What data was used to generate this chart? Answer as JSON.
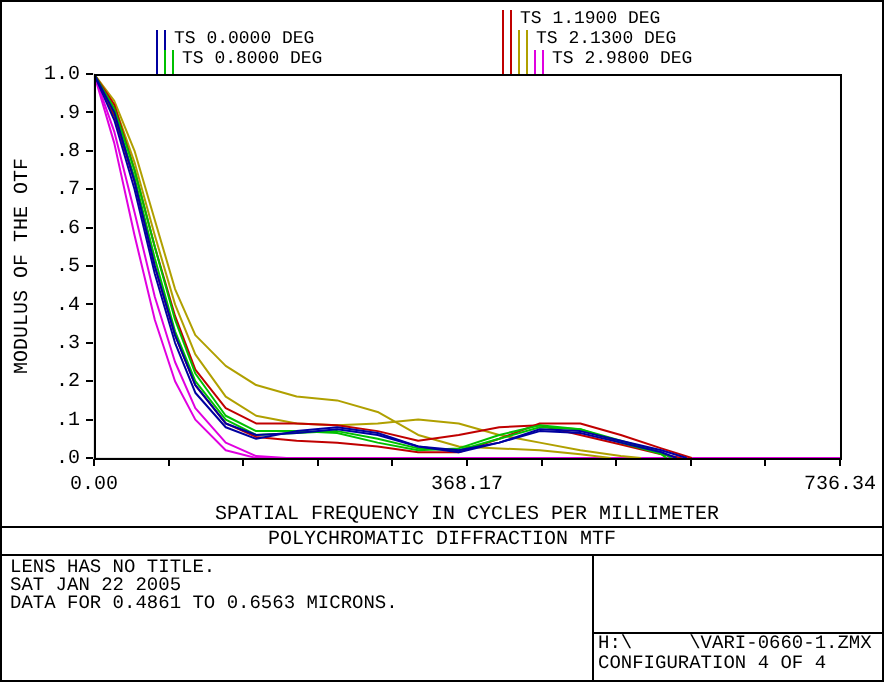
{
  "chart_data": {
    "type": "line",
    "title": "POLYCHROMATIC DIFFRACTION MTF",
    "xlabel": "SPATIAL FREQUENCY IN CYCLES PER MILLIMETER",
    "ylabel": "MODULUS OF THE OTF",
    "xlim": [
      0,
      736.34
    ],
    "xticks": [
      {
        "value": 0,
        "label": "0.00"
      },
      {
        "value": 73.634,
        "label": null
      },
      {
        "value": 147.268,
        "label": null
      },
      {
        "value": 220.902,
        "label": null
      },
      {
        "value": 294.536,
        "label": null
      },
      {
        "value": 368.17,
        "label": "368.17"
      },
      {
        "value": 441.804,
        "label": null
      },
      {
        "value": 515.438,
        "label": null
      },
      {
        "value": 589.072,
        "label": null
      },
      {
        "value": 662.706,
        "label": null
      },
      {
        "value": 736.34,
        "label": "736.34"
      }
    ],
    "ylim": [
      0,
      1
    ],
    "yticks": [
      {
        "value": 0,
        "label": ".0"
      },
      {
        "value": 0.1,
        "label": ".1"
      },
      {
        "value": 0.2,
        "label": ".2"
      },
      {
        "value": 0.3,
        "label": ".3"
      },
      {
        "value": 0.4,
        "label": ".4"
      },
      {
        "value": 0.5,
        "label": ".5"
      },
      {
        "value": 0.6,
        "label": ".6"
      },
      {
        "value": 0.7,
        "label": ".7"
      },
      {
        "value": 0.8,
        "label": ".8"
      },
      {
        "value": 0.9,
        "label": ".9"
      },
      {
        "value": 1,
        "label": "1.0"
      }
    ],
    "legend": "top",
    "marker": "none",
    "series": [
      {
        "name": "TS 0.0000 DEG",
        "color": "#0000a0",
        "x": [
          0,
          20,
          40,
          60,
          80,
          100,
          130,
          160,
          200,
          240,
          280,
          320,
          360,
          400,
          440,
          480,
          520,
          560,
          575
        ],
        "values": [
          1,
          0.88,
          0.7,
          0.48,
          0.3,
          0.17,
          0.08,
          0.05,
          0.07,
          0.08,
          0.065,
          0.03,
          0.015,
          0.04,
          0.07,
          0.065,
          0.04,
          0.015,
          0
        ]
      },
      {
        "color": "#0000a0",
        "x": [
          0,
          20,
          40,
          60,
          80,
          100,
          130,
          160,
          200,
          240,
          280,
          320,
          360,
          400,
          440,
          480,
          520,
          560,
          585
        ],
        "values": [
          1,
          0.9,
          0.72,
          0.5,
          0.32,
          0.19,
          0.09,
          0.06,
          0.065,
          0.075,
          0.06,
          0.03,
          0.02,
          0.04,
          0.075,
          0.07,
          0.045,
          0.02,
          0
        ]
      },
      {
        "name": "TS 0.8000 DEG",
        "color": "#00c000",
        "x": [
          0,
          20,
          40,
          60,
          80,
          100,
          130,
          160,
          200,
          240,
          280,
          320,
          360,
          400,
          440,
          480,
          520,
          560,
          570
        ],
        "values": [
          1,
          0.9,
          0.73,
          0.52,
          0.33,
          0.2,
          0.1,
          0.06,
          0.065,
          0.07,
          0.05,
          0.025,
          0.02,
          0.05,
          0.08,
          0.075,
          0.045,
          0.015,
          0
        ]
      },
      {
        "color": "#00c000",
        "x": [
          0,
          20,
          40,
          60,
          80,
          100,
          130,
          160,
          200,
          240,
          280,
          320,
          360,
          400,
          440,
          480,
          520,
          560,
          565
        ],
        "values": [
          1,
          0.91,
          0.75,
          0.55,
          0.36,
          0.22,
          0.11,
          0.07,
          0.07,
          0.065,
          0.04,
          0.02,
          0.025,
          0.06,
          0.085,
          0.075,
          0.04,
          0.01,
          0
        ]
      },
      {
        "name": "TS 1.1900 DEG",
        "color": "#c00000",
        "x": [
          0,
          20,
          40,
          60,
          80,
          100,
          130,
          160,
          200,
          240,
          280,
          320,
          360,
          400,
          440,
          480,
          520,
          560,
          580
        ],
        "values": [
          1,
          0.92,
          0.75,
          0.55,
          0.37,
          0.23,
          0.13,
          0.09,
          0.09,
          0.085,
          0.07,
          0.045,
          0.06,
          0.08,
          0.085,
          0.06,
          0.035,
          0.01,
          0
        ]
      },
      {
        "color": "#c00000",
        "x": [
          0,
          20,
          40,
          60,
          80,
          100,
          130,
          160,
          200,
          240,
          280,
          320,
          360,
          400,
          440,
          480,
          520,
          560,
          590
        ],
        "values": [
          1,
          0.89,
          0.72,
          0.5,
          0.32,
          0.19,
          0.09,
          0.055,
          0.045,
          0.04,
          0.03,
          0.015,
          0.015,
          0.05,
          0.09,
          0.09,
          0.06,
          0.025,
          0
        ]
      },
      {
        "name": "TS 2.1300 DEG",
        "color": "#b0a000",
        "x": [
          0,
          20,
          40,
          60,
          80,
          100,
          130,
          160,
          200,
          240,
          280,
          320,
          360,
          400,
          440,
          480,
          510
        ],
        "values": [
          1,
          0.93,
          0.8,
          0.62,
          0.44,
          0.32,
          0.24,
          0.19,
          0.16,
          0.15,
          0.12,
          0.06,
          0.03,
          0.025,
          0.02,
          0.01,
          0
        ]
      },
      {
        "color": "#b0a000",
        "x": [
          0,
          20,
          40,
          60,
          80,
          100,
          130,
          160,
          200,
          240,
          280,
          320,
          360,
          400,
          440,
          480,
          520,
          540
        ],
        "values": [
          1,
          0.92,
          0.77,
          0.58,
          0.4,
          0.27,
          0.16,
          0.11,
          0.09,
          0.085,
          0.09,
          0.1,
          0.09,
          0.06,
          0.04,
          0.02,
          0.005,
          0
        ]
      },
      {
        "name": "TS 2.9800 DEG",
        "color": "#e000e0",
        "x": [
          0,
          20,
          40,
          60,
          80,
          100,
          130,
          160,
          736.34
        ],
        "values": [
          1,
          0.82,
          0.58,
          0.36,
          0.2,
          0.1,
          0.02,
          0,
          0
        ]
      },
      {
        "color": "#e000e0",
        "x": [
          0,
          20,
          40,
          60,
          80,
          100,
          130,
          160,
          190
        ],
        "values": [
          1,
          0.85,
          0.64,
          0.42,
          0.25,
          0.13,
          0.04,
          0.005,
          0
        ]
      }
    ],
    "annotations": [
      "LENS HAS NO TITLE.",
      "SAT JAN 22 2005",
      "DATA FOR 0.4861 TO 0.6563 MICRONS.",
      "H:\\     \\VARI-0660-1.ZMX",
      "CONFIGURATION 4 OF 4"
    ]
  }
}
